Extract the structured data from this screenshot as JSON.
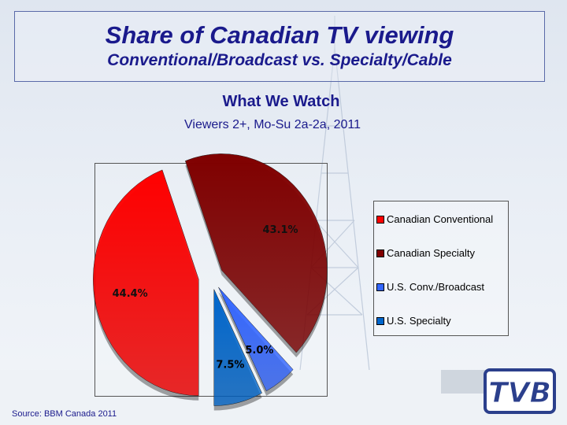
{
  "slide": {
    "title": "Share of Canadian TV viewing",
    "subtitle": "Conventional/Broadcast vs. Specialty/Cable",
    "source": "Source: BBM Canada 2011",
    "logo_text": "TVB"
  },
  "chart_data": {
    "type": "pie",
    "title": "What We Watch",
    "subtitle": "Viewers 2+, Mo-Su 2a-2a, 2011",
    "legend_position": "right",
    "exploded": true,
    "slices": [
      {
        "name": "Canadian Conventional",
        "value": 44.4,
        "label": "44.4%",
        "color": "#ff0000"
      },
      {
        "name": "Canadian Specialty",
        "value": 43.1,
        "label": "43.1%",
        "color": "#800000"
      },
      {
        "name": "U.S. Conv./Broadcast",
        "value": 5.0,
        "label": "5.0%",
        "color": "#3366ff"
      },
      {
        "name": "U.S. Specialty",
        "value": 7.5,
        "label": "7.5%",
        "color": "#0066cc"
      }
    ]
  }
}
